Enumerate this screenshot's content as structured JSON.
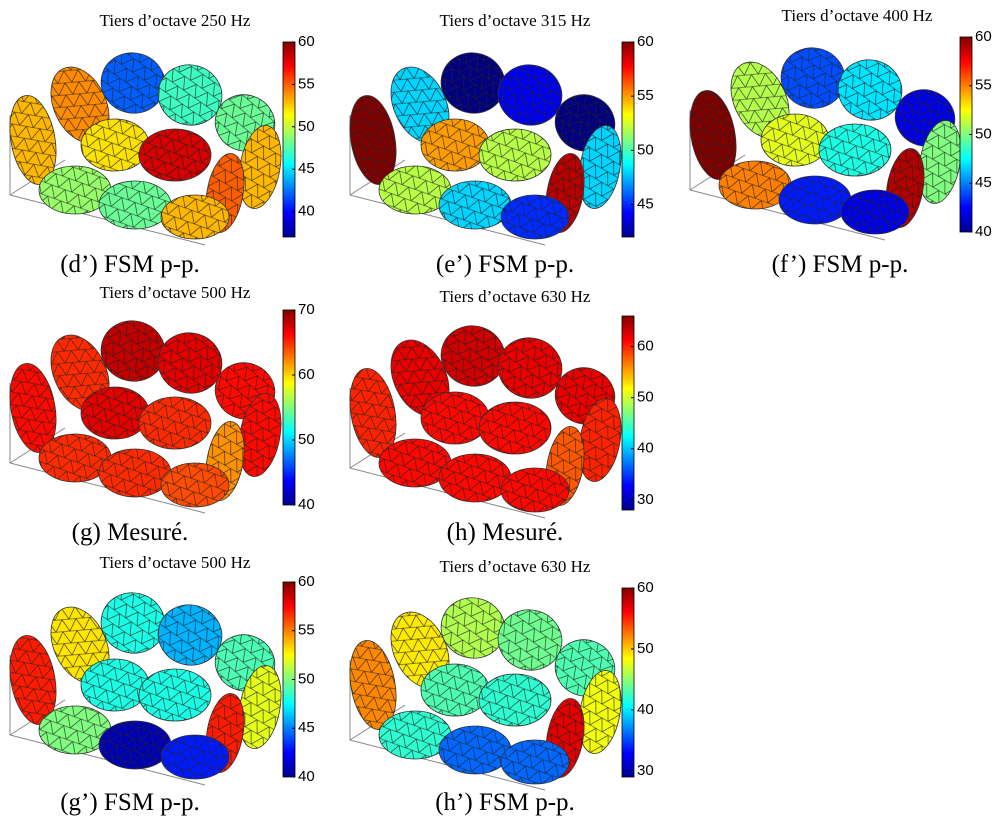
{
  "chart_data": [
    {
      "type": "surface",
      "title": "Tiers d’octave 250 Hz",
      "caption": "(d’) FSM p-p.",
      "clim": [
        37,
        60
      ],
      "cticks": [
        40,
        45,
        50,
        55,
        60
      ],
      "values": [
        53,
        54,
        42,
        47,
        48,
        53,
        55,
        52,
        58,
        49,
        48,
        53
      ]
    },
    {
      "type": "surface",
      "title": "Tiers d’octave 315 Hz",
      "caption": "(e’) FSM p-p.",
      "clim": [
        42,
        60
      ],
      "cticks": [
        45,
        50,
        55,
        60
      ],
      "values": [
        60,
        48,
        42,
        44,
        42,
        48,
        59,
        55,
        52,
        52,
        48,
        45
      ]
    },
    {
      "type": "surface",
      "title": "Tiers d’octave 400 Hz",
      "caption": "(f’) FSM p-p.",
      "clim": [
        40,
        60
      ],
      "cticks": [
        40,
        45,
        50,
        55,
        60
      ],
      "values": [
        60,
        51,
        44,
        47,
        42,
        50,
        59,
        52,
        48,
        55,
        43,
        42
      ]
    },
    {
      "type": "surface",
      "title": "Tiers d’octave 500 Hz",
      "caption": "(g) Mesuré.",
      "clim": [
        40,
        70
      ],
      "cticks": [
        40,
        50,
        60,
        70
      ],
      "values": [
        66,
        65,
        68,
        67,
        66,
        66,
        62,
        67,
        65,
        65,
        65,
        64
      ]
    },
    {
      "type": "surface",
      "title": "Tiers d’octave 630 Hz",
      "caption": "(h) Mesuré.",
      "clim": [
        28,
        66
      ],
      "cticks": [
        30,
        40,
        50,
        60
      ],
      "values": [
        60,
        62,
        63,
        62,
        62,
        60,
        58,
        61,
        61,
        61,
        61,
        61
      ]
    },
    {
      "type": "surface",
      "title": "Tiers d’octave 500 Hz",
      "caption": "(g’) FSM p-p.",
      "clim": [
        40,
        60
      ],
      "cticks": [
        40,
        45,
        50,
        55,
        60
      ],
      "values": [
        57,
        53,
        48,
        46,
        49,
        52,
        57,
        48,
        48,
        50,
        41,
        43
      ]
    },
    {
      "type": "surface",
      "title": "Tiers d’octave 630 Hz",
      "caption": "(h’) FSM p-p.",
      "clim": [
        29,
        60
      ],
      "cticks": [
        30,
        40,
        50,
        60
      ],
      "values": [
        52,
        49,
        46,
        44,
        43,
        48,
        57,
        43,
        42,
        42,
        36,
        36
      ]
    }
  ]
}
